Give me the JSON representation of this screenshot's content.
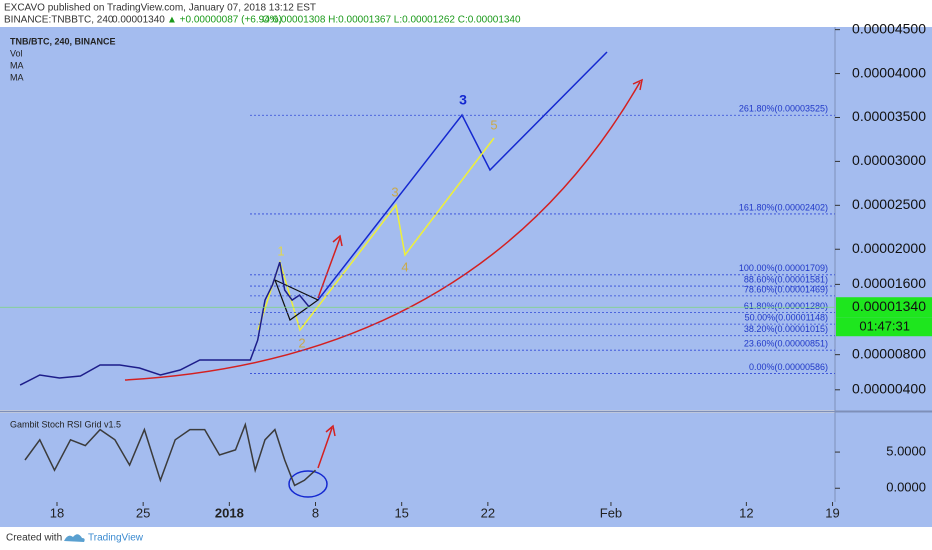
{
  "header": {
    "publisher": "EXCAVO published on TradingView.com, January 07, 2018 13:12 EST",
    "symbol": "BINANCE:TNBBTC, 240",
    "change": "▲ +0.00000087 (+6.94%)",
    "ohlc": "O:0.00001308 H:0.00001367 L:0.00001262 C:0.00001340"
  },
  "chart_data": [
    {
      "type": "line",
      "indicators": [
        "Vol",
        "MA",
        "MA"
      ],
      "x": [
        -3.0,
        -1.4,
        0.2,
        1.9,
        3.5,
        5.1,
        6.7,
        8.4,
        10.0,
        11.6,
        13.2,
        14.9,
        15.7,
        16.3,
        16.9,
        17.5,
        18.1,
        18.5,
        19.1,
        19.7,
        20.5
      ],
      "series": [
        {
          "name": "TNB/BTC, 240, BINANCE",
          "color": "#1d1d8a",
          "values": [
            4.54e-06,
            5.68e-06,
            5.34e-06,
            5.57e-06,
            6.82e-06,
            6.82e-06,
            6.48e-06,
            5.68e-06,
            6.25e-06,
            7.39e-06,
            7.39e-06,
            7.39e-06,
            7.39e-06,
            9.66e-06,
            1.421e-05,
            1.592e-05,
            1.854e-05,
            1.535e-05,
            1.421e-05,
            1.478e-05,
            1.34e-05
          ]
        }
      ],
      "xlim": [
        -4.63,
        63.2
      ],
      "xticks": [
        {
          "value": 0,
          "label": "18"
        },
        {
          "value": 7,
          "label": "25"
        },
        {
          "value": 14,
          "label": "2018"
        },
        {
          "value": 21,
          "label": "8"
        },
        {
          "value": 28,
          "label": "15"
        },
        {
          "value": 35,
          "label": "22"
        },
        {
          "value": 45,
          "label": "Feb"
        },
        {
          "value": 56,
          "label": "12"
        },
        {
          "value": 63,
          "label": "19"
        }
      ],
      "ylim": [
        1.7e-06,
        4.53e-05
      ],
      "yticks": [
        {
          "value": 4e-06,
          "label": "0.00000400"
        },
        {
          "value": 8e-06,
          "label": "0.00000800"
        },
        {
          "value": 1.6e-05,
          "label": "0.00001600"
        },
        {
          "value": 2e-05,
          "label": "0.00002000"
        },
        {
          "value": 2.5e-05,
          "label": "0.00002500"
        },
        {
          "value": 3e-05,
          "label": "0.00003000"
        },
        {
          "value": 3.5e-05,
          "label": "0.00003500"
        },
        {
          "value": 4e-05,
          "label": "0.00004000"
        },
        {
          "value": 4.5e-05,
          "label": "0.00004500"
        }
      ],
      "fib_levels": [
        {
          "value": 3.525e-05,
          "label": "261.80%(0.00003525)"
        },
        {
          "value": 2.402e-05,
          "label": "161.80%(0.00002402)"
        },
        {
          "value": 1.709e-05,
          "label": "100.00%(0.00001709)"
        },
        {
          "value": 1.581e-05,
          "label": "88.60%(0.00001581)"
        },
        {
          "value": 1.469e-05,
          "label": "78.60%(0.00001469)"
        },
        {
          "value": 1.28e-05,
          "label": "61.80%(0.00001280)"
        },
        {
          "value": 1.148e-05,
          "label": "50.00%(0.00001148)"
        },
        {
          "value": 1.015e-05,
          "label": "38.20%(0.00001015)"
        },
        {
          "value": 8.51e-06,
          "label": "23.60%(0.00000851)"
        },
        {
          "value": 5.86e-06,
          "label": "0.00%(0.00000586)"
        }
      ],
      "last_price": {
        "value": 1.34e-05,
        "label": "0.00001340"
      },
      "timer": "01:47:31",
      "wave_labels": [
        "1",
        "2",
        "3",
        "4",
        "5"
      ],
      "wave_labels_blue": [
        "3"
      ]
    },
    {
      "type": "line",
      "x": [
        -2.6,
        -1.4,
        -0.2,
        1.1,
        2.3,
        3.5,
        4.7,
        5.9,
        7.1,
        8.4,
        9.6,
        10.8,
        12.0,
        13.2,
        14.5,
        15.3,
        16.1,
        16.9,
        17.7,
        18.5,
        19.3,
        20.1,
        21.0
      ],
      "series": [
        {
          "name": "Gambit Stoch RSI Grid v1.5",
          "color": "#3b3b3b",
          "values": [
            3.9,
            6.7,
            2.5,
            6.7,
            5.9,
            8.1,
            6.7,
            3.2,
            8.1,
            1.1,
            6.7,
            8.1,
            8.1,
            4.6,
            5.3,
            8.8,
            2.5,
            6.7,
            8.1,
            3.9,
            0.4,
            1.1,
            2.5
          ]
        }
      ],
      "xlim": [
        -4.63,
        63.2
      ],
      "ylim": [
        -1.9,
        10.4
      ],
      "yticks": [
        {
          "value": 0,
          "label": "0.0000"
        },
        {
          "value": 5,
          "label": "5.0000"
        }
      ]
    }
  ],
  "footer": {
    "created": "Created with",
    "brand": "TradingView"
  }
}
